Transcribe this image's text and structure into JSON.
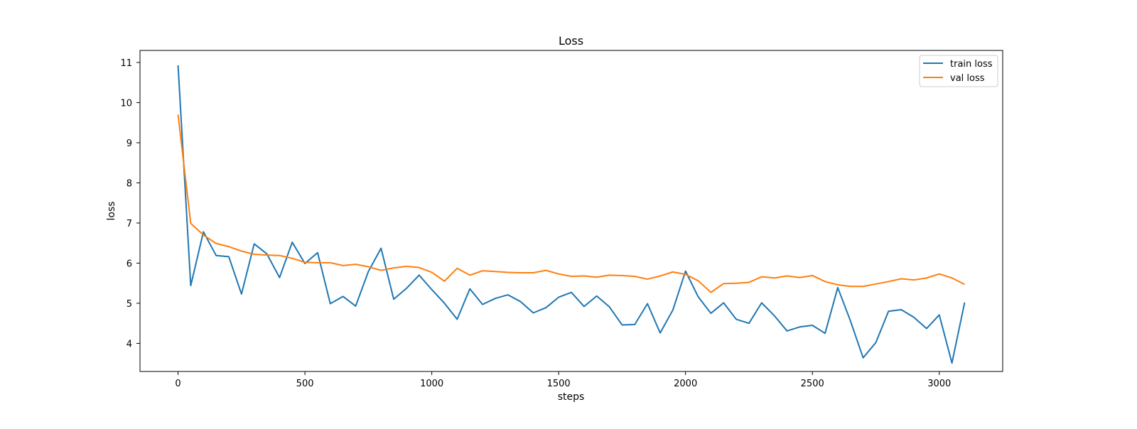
{
  "chart_data": {
    "type": "line",
    "title": "Loss",
    "xlabel": "steps",
    "ylabel": "loss",
    "xlim": [
      -150,
      3250
    ],
    "ylim": [
      3.3,
      11.3
    ],
    "xticks": [
      0,
      500,
      1000,
      1500,
      2000,
      2500,
      3000
    ],
    "yticks": [
      4,
      5,
      6,
      7,
      8,
      9,
      10,
      11
    ],
    "grid": false,
    "legend_position": "top-right",
    "series": [
      {
        "name": "train loss",
        "color": "#1f77b4",
        "x": [
          0,
          50,
          100,
          150,
          200,
          250,
          300,
          350,
          400,
          450,
          500,
          550,
          600,
          650,
          700,
          750,
          800,
          850,
          900,
          950,
          1000,
          1050,
          1100,
          1150,
          1200,
          1250,
          1300,
          1350,
          1400,
          1450,
          1500,
          1550,
          1600,
          1650,
          1700,
          1750,
          1800,
          1850,
          1900,
          1950,
          2000,
          2050,
          2100,
          2150,
          2200,
          2250,
          2300,
          2350,
          2400,
          2450,
          2500,
          2550,
          2600,
          2650,
          2700,
          2750,
          2800,
          2850,
          2900,
          2950,
          3000,
          3050,
          3100
        ],
        "y": [
          10.93,
          5.44,
          6.78,
          6.19,
          6.16,
          5.23,
          6.48,
          6.23,
          5.64,
          6.52,
          5.99,
          6.26,
          4.99,
          5.17,
          4.93,
          5.79,
          6.37,
          5.1,
          5.37,
          5.7,
          5.34,
          5.0,
          4.6,
          5.36,
          4.97,
          5.12,
          5.21,
          5.04,
          4.76,
          4.89,
          5.15,
          5.27,
          4.92,
          5.18,
          4.91,
          4.46,
          4.47,
          4.99,
          4.26,
          4.83,
          5.8,
          5.16,
          4.75,
          5.01,
          4.6,
          4.5,
          5.01,
          4.69,
          4.31,
          4.41,
          4.45,
          4.25,
          5.39,
          4.56,
          3.64,
          4.02,
          4.8,
          4.84,
          4.65,
          4.37,
          4.71,
          3.51,
          5.02
        ]
      },
      {
        "name": "val loss",
        "color": "#ff7f0e",
        "x": [
          0,
          50,
          100,
          150,
          200,
          250,
          300,
          350,
          400,
          450,
          500,
          550,
          600,
          650,
          700,
          750,
          800,
          850,
          900,
          950,
          1000,
          1050,
          1100,
          1150,
          1200,
          1250,
          1300,
          1350,
          1400,
          1450,
          1500,
          1550,
          1600,
          1650,
          1700,
          1750,
          1800,
          1850,
          1900,
          1950,
          2000,
          2050,
          2100,
          2150,
          2200,
          2250,
          2300,
          2350,
          2400,
          2450,
          2500,
          2550,
          2600,
          2650,
          2700,
          2750,
          2800,
          2850,
          2900,
          2950,
          3000,
          3050,
          3100
        ],
        "y": [
          9.7,
          6.99,
          6.7,
          6.49,
          6.41,
          6.3,
          6.22,
          6.2,
          6.19,
          6.12,
          6.02,
          6.01,
          6.01,
          5.94,
          5.97,
          5.91,
          5.82,
          5.88,
          5.92,
          5.89,
          5.77,
          5.55,
          5.87,
          5.7,
          5.81,
          5.79,
          5.77,
          5.76,
          5.76,
          5.82,
          5.73,
          5.67,
          5.68,
          5.65,
          5.7,
          5.69,
          5.67,
          5.6,
          5.68,
          5.78,
          5.72,
          5.56,
          5.27,
          5.49,
          5.5,
          5.52,
          5.66,
          5.63,
          5.68,
          5.64,
          5.69,
          5.54,
          5.46,
          5.42,
          5.42,
          5.48,
          5.54,
          5.61,
          5.58,
          5.63,
          5.73,
          5.63,
          5.47
        ]
      }
    ]
  }
}
